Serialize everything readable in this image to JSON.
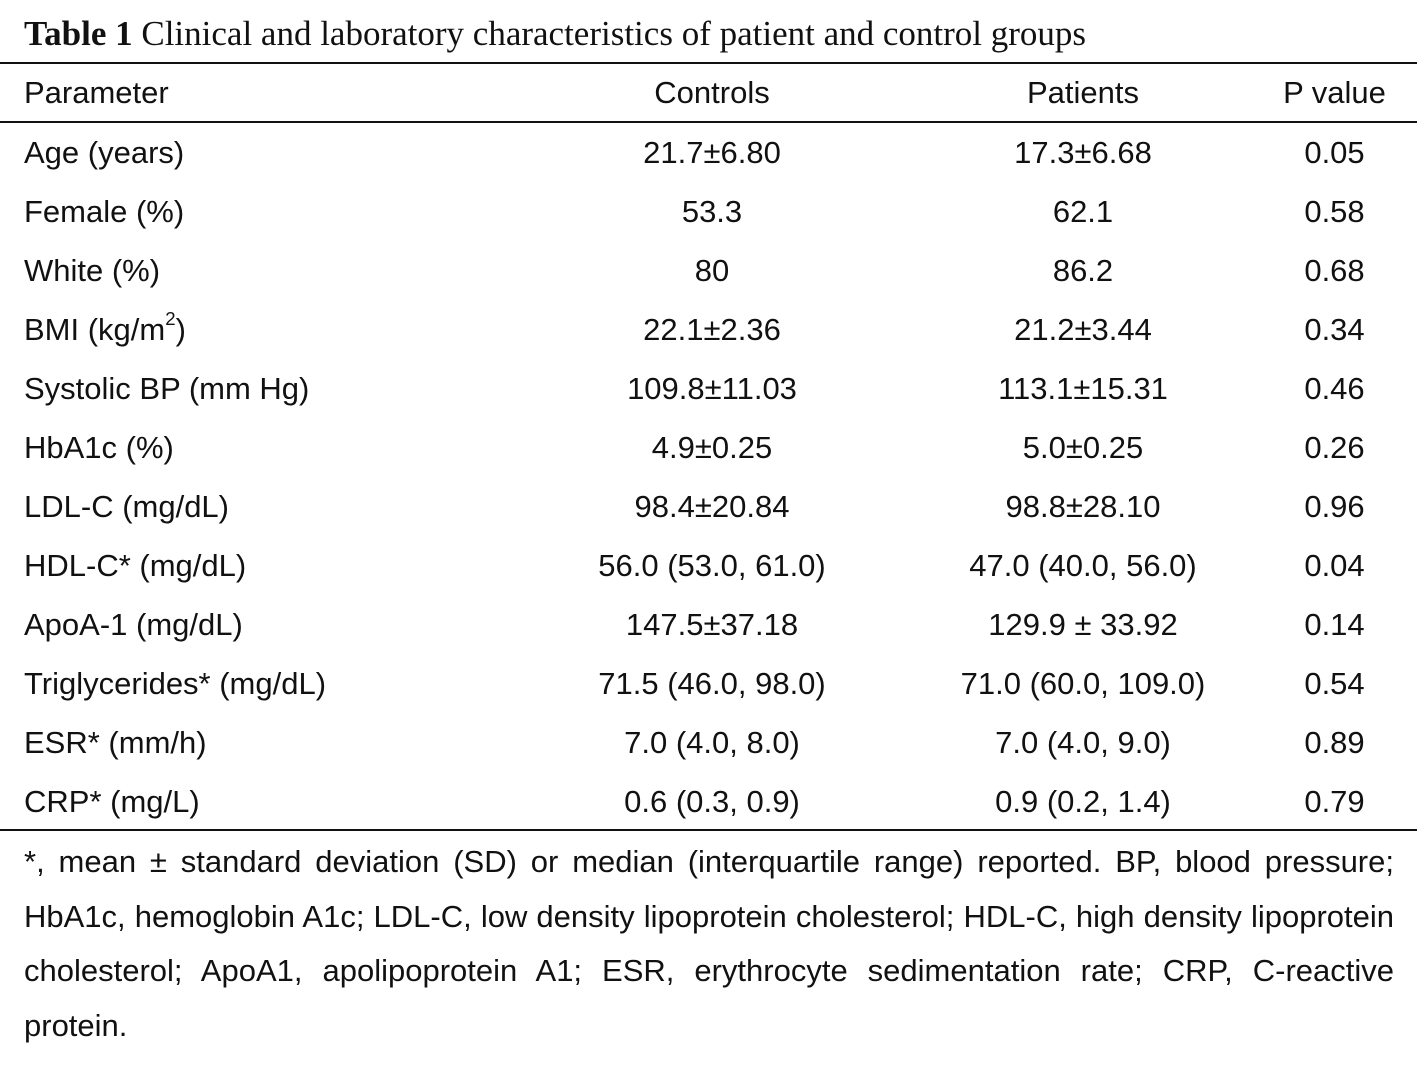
{
  "caption": {
    "label": "Table 1",
    "text": "Clinical and laboratory characteristics of patient and control groups"
  },
  "table": {
    "headers": [
      "Parameter",
      "Controls",
      "Patients",
      "P value"
    ],
    "rows": [
      {
        "parameter": "Age (years)",
        "controls": "21.7±6.80",
        "patients": "17.3±6.68",
        "p": "0.05"
      },
      {
        "parameter": "Female (%)",
        "controls": "53.3",
        "patients": "62.1",
        "p": "0.58"
      },
      {
        "parameter": "White (%)",
        "controls": "80",
        "patients": "86.2",
        "p": "0.68"
      },
      {
        "parameter_pre": "BMI (kg/m",
        "parameter_sup": "2",
        "parameter_post": ")",
        "controls": "22.1±2.36",
        "patients": "21.2±3.44",
        "p": "0.34"
      },
      {
        "parameter": "Systolic BP (mm Hg)",
        "controls": "109.8±11.03",
        "patients": "113.1±15.31",
        "p": "0.46"
      },
      {
        "parameter": "HbA1c (%)",
        "controls": "4.9±0.25",
        "patients": "5.0±0.25",
        "p": "0.26"
      },
      {
        "parameter": "LDL-C (mg/dL)",
        "controls": "98.4±20.84",
        "patients": "98.8±28.10",
        "p": "0.96"
      },
      {
        "parameter": "HDL-C* (mg/dL)",
        "controls": "56.0 (53.0, 61.0)",
        "patients": "47.0 (40.0, 56.0)",
        "p": "0.04"
      },
      {
        "parameter": "ApoA-1 (mg/dL)",
        "controls": "147.5±37.18",
        "patients": "129.9 ± 33.92",
        "p": "0.14"
      },
      {
        "parameter": "Triglycerides* (mg/dL)",
        "controls": "71.5 (46.0, 98.0)",
        "patients": "71.0 (60.0, 109.0)",
        "p": "0.54"
      },
      {
        "parameter": "ESR* (mm/h)",
        "controls": "7.0 (4.0, 8.0)",
        "patients": "7.0 (4.0, 9.0)",
        "p": "0.89"
      },
      {
        "parameter": "CRP* (mg/L)",
        "controls": "0.6 (0.3, 0.9)",
        "patients": "0.9 (0.2, 1.4)",
        "p": "0.79"
      }
    ]
  },
  "footnote": "*, mean ± standard deviation (SD) or median (interquartile range) reported. BP, blood pressure; HbA1c, hemoglobin A1c; LDL-C, low density lipoprotein cholesterol; HDL-C, high density lipoprotein cholesterol; ApoA1, apolipoprotein A1; ESR, erythrocyte sedimentation rate; CRP, C-reactive protein."
}
